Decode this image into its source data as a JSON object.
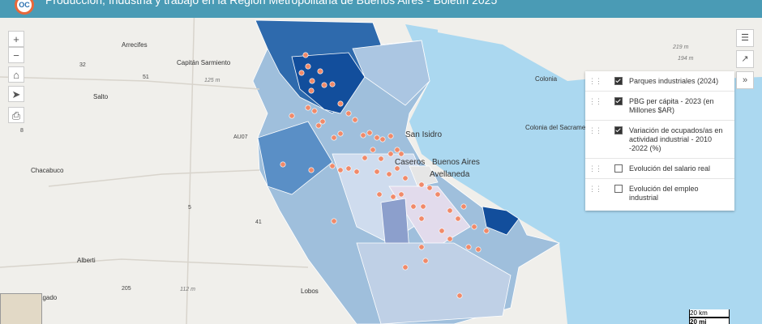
{
  "header": {
    "title": "Producción, Industria y trabajo en la Región Metropolitana de Buenos Aires - Boletín 2025"
  },
  "map_labels": [
    "Arrecifes",
    "Capitán Sarmiento",
    "Salto",
    "Chacabuco",
    "Alberti",
    "Bragado",
    "Lobos",
    "Colonia",
    "Colonia del Sacramento",
    "San Isidro",
    "Buenos Aires",
    "Avellaneda",
    "Caseros"
  ],
  "road_labels": [
    "32",
    "51",
    "8",
    "AU07",
    "5",
    "41",
    "205",
    "125 m",
    "112 m",
    "219 m",
    "194 m"
  ],
  "layers": [
    {
      "label": "Parques industriales (2024)",
      "checked": true
    },
    {
      "label": "PBG per cápita - 2023 (en Millones $AR)",
      "checked": true
    },
    {
      "label": "Variación de ocupados/as en actividad industrial - 2010 -2022 (%)",
      "checked": true
    },
    {
      "label": "Evolución del salario real",
      "checked": false
    },
    {
      "label": "Evolución del empleo industrial",
      "checked": false
    }
  ],
  "scale": {
    "km": "20 km",
    "mi": "20 mi"
  }
}
